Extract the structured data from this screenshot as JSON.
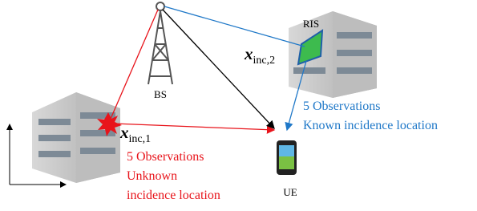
{
  "nodes": {
    "bs": {
      "label": "BS"
    },
    "ris": {
      "label": "RIS",
      "symbol": "x",
      "subscript": "inc,2"
    },
    "ue": {
      "label": "UE"
    },
    "scatterer": {
      "symbol": "x",
      "subscript": "inc,1"
    }
  },
  "annotations": {
    "known": {
      "lines": [
        "5 Observations",
        "Known incidence location"
      ]
    },
    "unknown": {
      "lines": [
        "5 Observations",
        "Unknown",
        "incidence location"
      ]
    }
  }
}
